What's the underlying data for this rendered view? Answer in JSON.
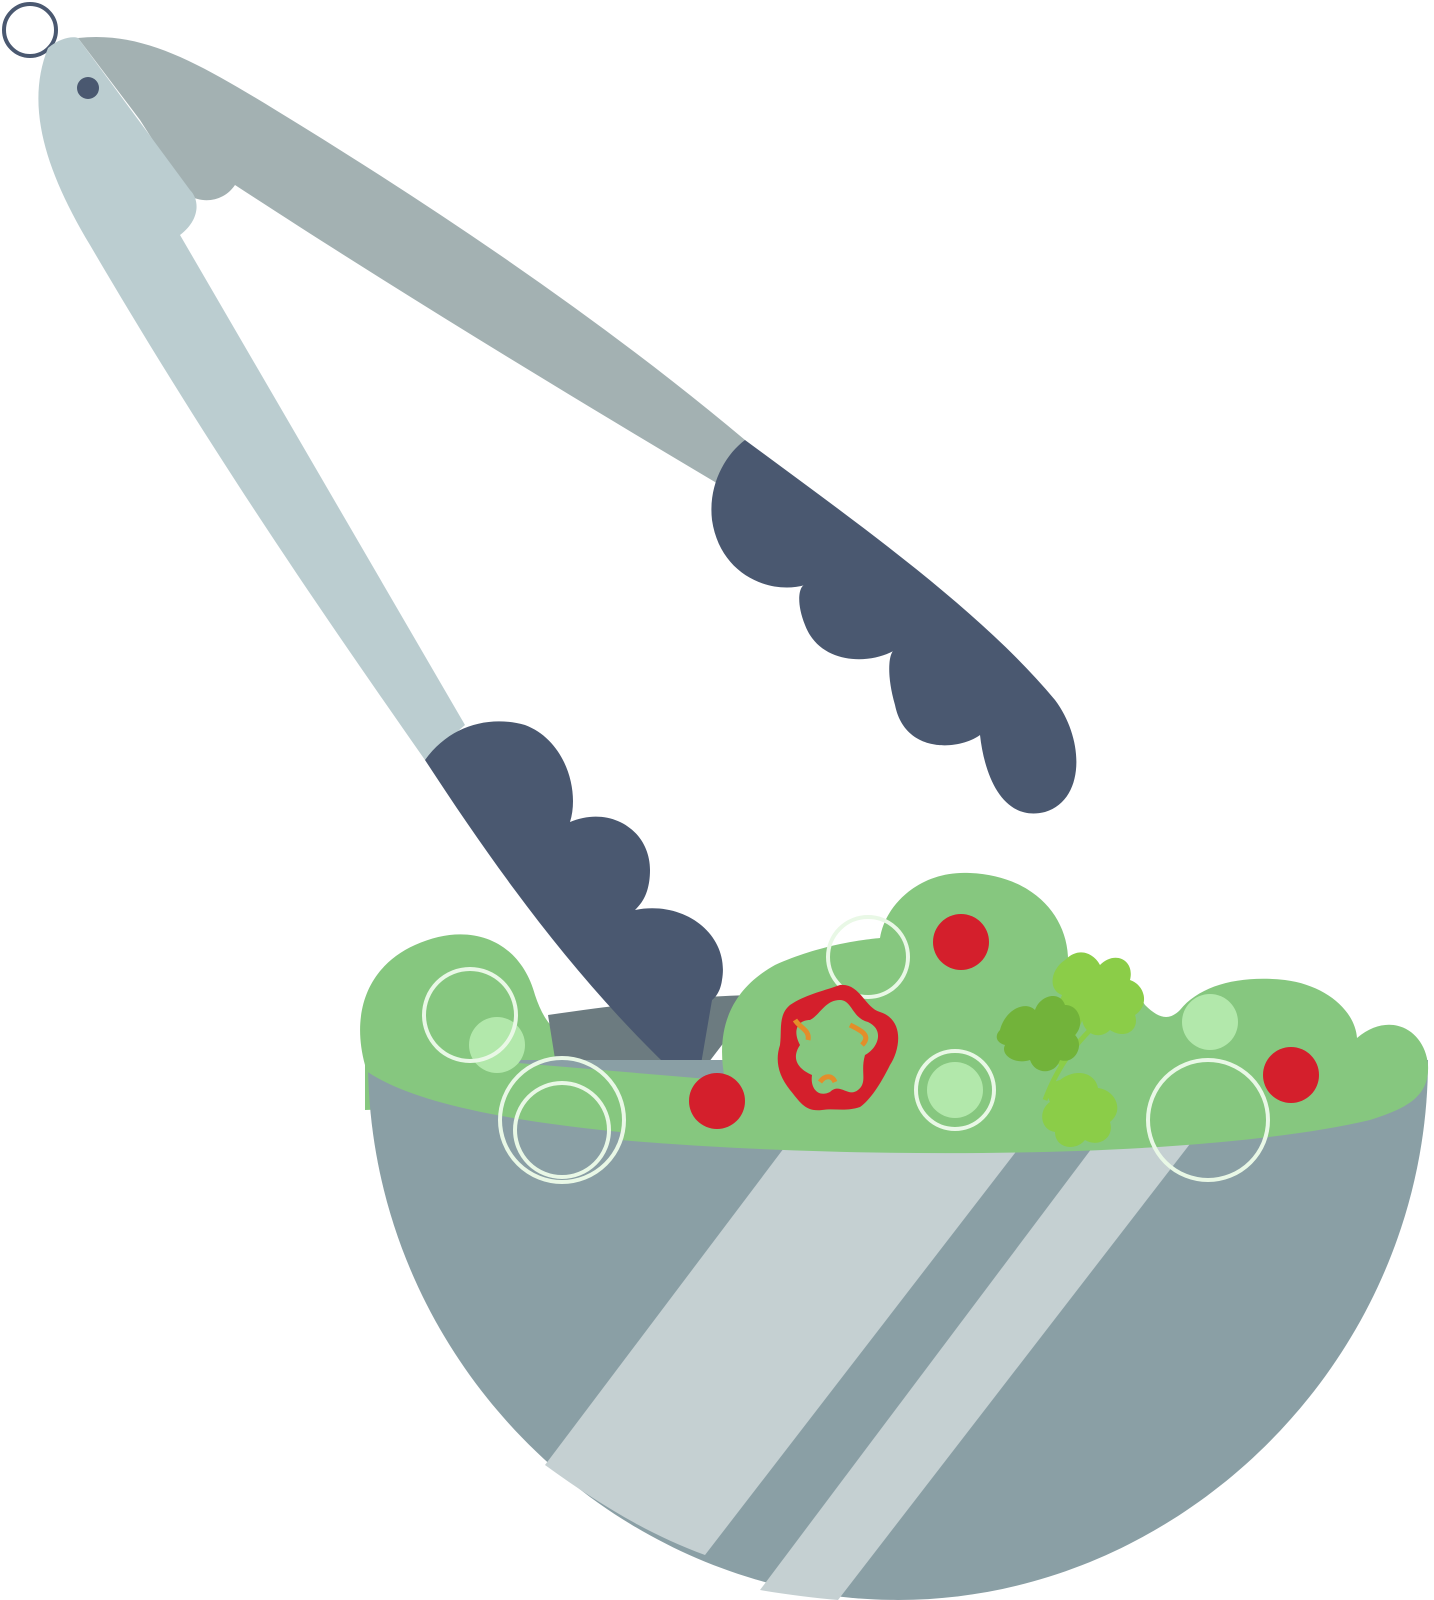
{
  "scene": {
    "subject": "salad-bowl-with-tongs",
    "colors": {
      "background": "#ffffff",
      "tong_light": "#BBCDD0",
      "tong_shade": "#A3B1B2",
      "tong_grip": "#4A5870",
      "bowl": "#8A9FA5",
      "bowl_shadow": "#6C7B80",
      "bowl_highlight": "#C5D0D2",
      "lettuce": "#86C77F",
      "lettuce_bubble": "#B2E8AB",
      "ring": "#E9F8E6",
      "tomato": "#D41F2C",
      "pepper_red": "#D41F2C",
      "pepper_orange": "#E38E2A",
      "herb_dark": "#72B33A",
      "herb_light": "#8BCD48",
      "hang_ring": "#4A5870"
    },
    "icons": [
      "hang-ring-icon",
      "tongs-icon",
      "salad-bowl-icon",
      "tomato-icon",
      "pepper-slice-icon",
      "cilantro-icon"
    ]
  }
}
